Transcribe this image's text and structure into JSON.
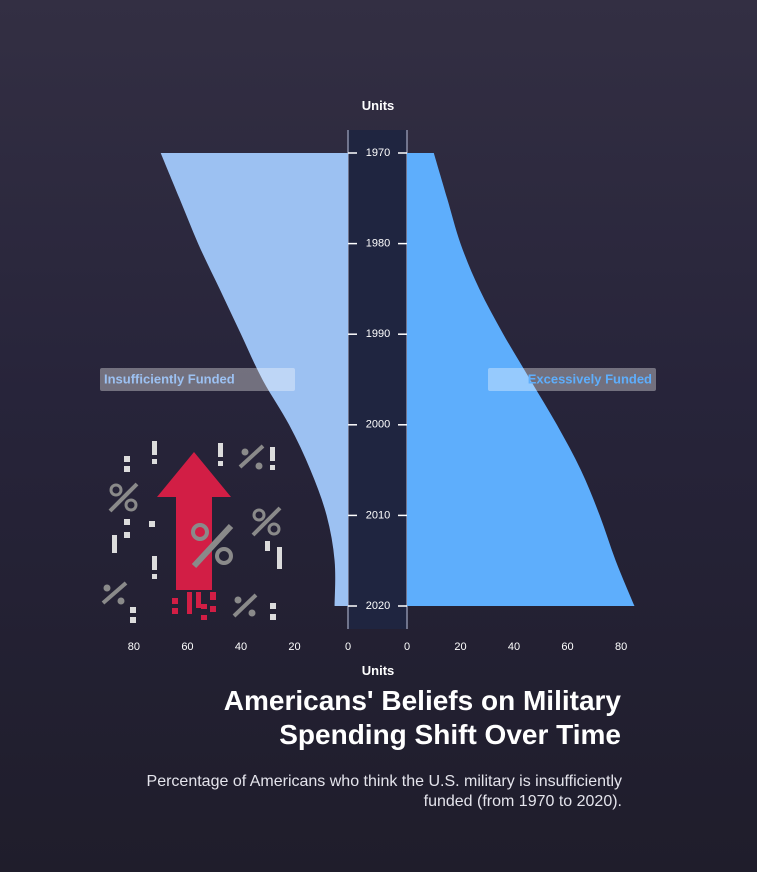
{
  "chart_data": {
    "type": "area",
    "layout": "butterfly",
    "orientation": "vertical-time",
    "title": "Americans' Beliefs on Military Spending Shift Over Time",
    "subtitle": "Percentage of Americans who think the U.S. military is insufficiently funded (from 1970 to 2020).",
    "years": [
      "1970",
      "1980",
      "1990",
      "2000",
      "2010",
      "2020"
    ],
    "y_axis_title": "Units",
    "x_axis_title": "Units",
    "xlim": [
      0,
      88
    ],
    "left_ticks": [
      80,
      60,
      40,
      20,
      0
    ],
    "right_ticks": [
      0,
      20,
      40,
      60,
      80
    ],
    "series": [
      {
        "name": "Insufficiently Funded",
        "side": "left",
        "color": "#9cc1f2",
        "x": [
          1970,
          1975,
          1980,
          1985,
          1990,
          1995,
          2000,
          2005,
          2010,
          2015,
          2020
        ],
        "values": [
          70,
          63,
          56,
          48,
          40,
          32,
          22,
          14,
          8,
          5,
          5
        ]
      },
      {
        "name": "Excessively Funded",
        "side": "right",
        "color": "#5eaefc",
        "x": [
          1970,
          1975,
          1980,
          1985,
          1990,
          1995,
          2000,
          2005,
          2010,
          2015,
          2020
        ],
        "values": [
          10,
          15,
          20,
          27,
          36,
          46,
          56,
          65,
          72,
          78,
          85
        ]
      }
    ],
    "colors": {
      "center_band": "#1f2540",
      "axis": "#ffffff",
      "arrow": "#d21e45",
      "pictogram": "#8a8a8a"
    }
  }
}
